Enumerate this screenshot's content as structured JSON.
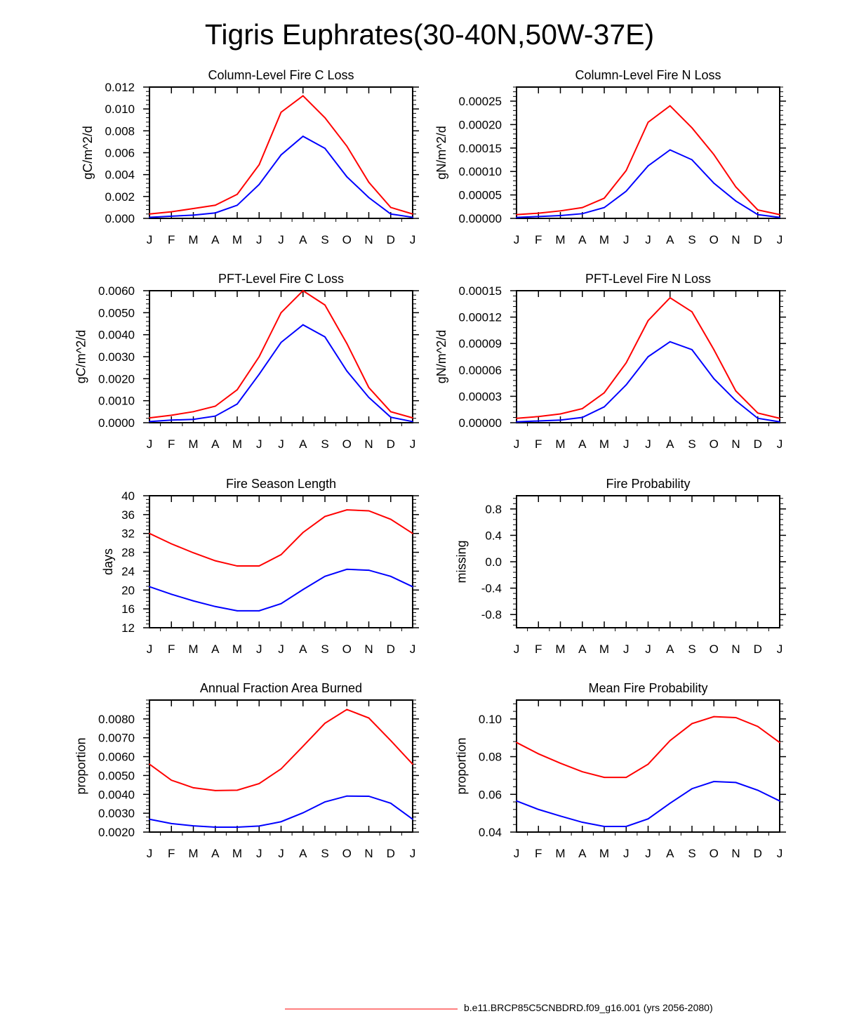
{
  "page": {
    "title": "Tigris Euphrates(30-40N,50W-37E)",
    "legend_label": "b.e11.BRCP85C5CNBDRD.f09_g16.001 (yrs 2056-2080)",
    "series_colors": [
      "#ff0000",
      "#0000ff"
    ]
  },
  "chart_data": [
    {
      "type": "line",
      "title": "Column-Level Fire C Loss",
      "ylabel": "gC/m^2/d",
      "categories": [
        "J",
        "F",
        "M",
        "A",
        "M",
        "J",
        "J",
        "A",
        "S",
        "O",
        "N",
        "D",
        "J"
      ],
      "ylim": [
        0,
        0.012
      ],
      "yticks": [
        0,
        0.002,
        0.004,
        0.006,
        0.008,
        0.01,
        0.012
      ],
      "ytick_labels": [
        "0.000",
        "0.002",
        "0.004",
        "0.006",
        "0.008",
        "0.010",
        "0.012"
      ],
      "series": [
        {
          "name": "red",
          "color": "#ff0000",
          "values": [
            0.0004,
            0.0006,
            0.0009,
            0.0012,
            0.0022,
            0.0049,
            0.0097,
            0.0112,
            0.0092,
            0.0066,
            0.0033,
            0.001,
            0.0004
          ]
        },
        {
          "name": "blue",
          "color": "#0000ff",
          "values": [
            0.0001,
            0.0002,
            0.0003,
            0.0005,
            0.0012,
            0.0031,
            0.0058,
            0.0075,
            0.0064,
            0.0038,
            0.0019,
            0.0004,
            0.0001
          ]
        }
      ]
    },
    {
      "type": "line",
      "title": "Column-Level Fire N Loss",
      "ylabel": "gN/m^2/d",
      "categories": [
        "J",
        "F",
        "M",
        "A",
        "M",
        "J",
        "J",
        "A",
        "S",
        "O",
        "N",
        "D",
        "J"
      ],
      "ylim": [
        0,
        0.00028
      ],
      "yticks": [
        0,
        5e-05,
        0.0001,
        0.00015,
        0.0002,
        0.00025
      ],
      "ytick_labels": [
        "0.00000",
        "0.00005",
        "0.00010",
        "0.00015",
        "0.00020",
        "0.00025"
      ],
      "series": [
        {
          "name": "red",
          "color": "#ff0000",
          "values": [
            8e-06,
            1.1e-05,
            1.6e-05,
            2.3e-05,
            4.3e-05,
            0.000102,
            0.000205,
            0.00024,
            0.000193,
            0.000136,
            6.7e-05,
            1.8e-05,
            8e-06
          ]
        },
        {
          "name": "blue",
          "color": "#0000ff",
          "values": [
            2e-06,
            4e-06,
            6e-06,
            1e-05,
            2.3e-05,
            5.8e-05,
            0.000112,
            0.000146,
            0.000125,
            7.5e-05,
            3.7e-05,
            8e-06,
            2e-06
          ]
        }
      ]
    },
    {
      "type": "line",
      "title": "PFT-Level Fire C Loss",
      "ylabel": "gC/m^2/d",
      "categories": [
        "J",
        "F",
        "M",
        "A",
        "M",
        "J",
        "J",
        "A",
        "S",
        "O",
        "N",
        "D",
        "J"
      ],
      "ylim": [
        0,
        0.006
      ],
      "yticks": [
        0,
        0.001,
        0.002,
        0.003,
        0.004,
        0.005,
        0.006
      ],
      "ytick_labels": [
        "0.0000",
        "0.0010",
        "0.0020",
        "0.0030",
        "0.0040",
        "0.0050",
        "0.0060"
      ],
      "series": [
        {
          "name": "red",
          "color": "#ff0000",
          "values": [
            0.00022,
            0.00034,
            0.0005,
            0.00075,
            0.0015,
            0.003,
            0.005,
            0.006,
            0.00535,
            0.0036,
            0.0016,
            0.0005,
            0.00022
          ]
        },
        {
          "name": "blue",
          "color": "#0000ff",
          "values": [
            5e-05,
            0.00012,
            0.00015,
            0.0003,
            0.00085,
            0.0022,
            0.00365,
            0.00445,
            0.0039,
            0.00235,
            0.00115,
            0.00025,
            5e-05
          ]
        }
      ]
    },
    {
      "type": "line",
      "title": "PFT-Level Fire N Loss",
      "ylabel": "gN/m^2/d",
      "categories": [
        "J",
        "F",
        "M",
        "A",
        "M",
        "J",
        "J",
        "A",
        "S",
        "O",
        "N",
        "D",
        "J"
      ],
      "ylim": [
        0,
        0.00015
      ],
      "yticks": [
        0,
        3e-05,
        6e-05,
        9e-05,
        0.00012,
        0.00015
      ],
      "ytick_labels": [
        "0.00000",
        "0.00003",
        "0.00006",
        "0.00009",
        "0.00012",
        "0.00015"
      ],
      "series": [
        {
          "name": "red",
          "color": "#ff0000",
          "values": [
            5e-06,
            7e-06,
            1e-05,
            1.6e-05,
            3.4e-05,
            6.8e-05,
            0.000116,
            0.000142,
            0.000126,
            8.3e-05,
            3.6e-05,
            1.1e-05,
            5e-06
          ]
        },
        {
          "name": "blue",
          "color": "#0000ff",
          "values": [
            1e-06,
            2e-06,
            3e-06,
            6e-06,
            1.8e-05,
            4.3e-05,
            7.5e-05,
            9.2e-05,
            8.3e-05,
            5e-05,
            2.5e-05,
            5e-06,
            1e-06
          ]
        }
      ]
    },
    {
      "type": "line",
      "title": "Fire Season Length",
      "ylabel": "days",
      "categories": [
        "J",
        "F",
        "M",
        "A",
        "M",
        "J",
        "J",
        "A",
        "S",
        "O",
        "N",
        "D",
        "J"
      ],
      "ylim": [
        12,
        40
      ],
      "yticks": [
        12,
        16,
        20,
        24,
        28,
        32,
        36,
        40
      ],
      "ytick_labels": [
        "12",
        "16",
        "20",
        "24",
        "28",
        "32",
        "36",
        "40"
      ],
      "series": [
        {
          "name": "red",
          "color": "#ff0000",
          "values": [
            32.0,
            29.8,
            27.9,
            26.2,
            25.1,
            25.1,
            27.5,
            32.2,
            35.6,
            37.0,
            36.8,
            35.0,
            32.0
          ]
        },
        {
          "name": "blue",
          "color": "#0000ff",
          "values": [
            20.7,
            19.1,
            17.7,
            16.5,
            15.6,
            15.6,
            17.1,
            20.1,
            22.9,
            24.4,
            24.2,
            22.9,
            20.7
          ]
        }
      ]
    },
    {
      "type": "line",
      "title": "Fire Probability",
      "ylabel": "missing",
      "categories": [
        "J",
        "F",
        "M",
        "A",
        "M",
        "J",
        "J",
        "A",
        "S",
        "O",
        "N",
        "D",
        "J"
      ],
      "ylim": [
        -1.0,
        1.0
      ],
      "yticks": [
        -0.8,
        -0.4,
        0.0,
        0.4,
        0.8
      ],
      "ytick_labels": [
        "-0.8",
        "-0.4",
        "0.0",
        "0.4",
        "0.8"
      ],
      "series": []
    },
    {
      "type": "line",
      "title": "Annual Fraction Area Burned",
      "ylabel": "proportion",
      "categories": [
        "J",
        "F",
        "M",
        "A",
        "M",
        "J",
        "J",
        "A",
        "S",
        "O",
        "N",
        "D",
        "J"
      ],
      "ylim": [
        0.002,
        0.009
      ],
      "yticks": [
        0.002,
        0.003,
        0.004,
        0.005,
        0.006,
        0.007,
        0.008
      ],
      "ytick_labels": [
        "0.0020",
        "0.0030",
        "0.0040",
        "0.0050",
        "0.0060",
        "0.0070",
        "0.0080"
      ],
      "series": [
        {
          "name": "red",
          "color": "#ff0000",
          "values": [
            0.0056,
            0.00475,
            0.00435,
            0.0042,
            0.00422,
            0.00457,
            0.00535,
            0.00655,
            0.00777,
            0.0085,
            0.00805,
            0.00685,
            0.0056
          ]
        },
        {
          "name": "blue",
          "color": "#0000ff",
          "values": [
            0.00268,
            0.00245,
            0.00233,
            0.00226,
            0.00226,
            0.00232,
            0.00255,
            0.00302,
            0.0036,
            0.00391,
            0.0039,
            0.00353,
            0.00268
          ]
        }
      ]
    },
    {
      "type": "line",
      "title": "Mean Fire Probability",
      "ylabel": "proportion",
      "categories": [
        "J",
        "F",
        "M",
        "A",
        "M",
        "J",
        "J",
        "A",
        "S",
        "O",
        "N",
        "D",
        "J"
      ],
      "ylim": [
        0.04,
        0.11
      ],
      "yticks": [
        0.04,
        0.06,
        0.08,
        0.1
      ],
      "ytick_labels": [
        "0.04",
        "0.06",
        "0.08",
        "0.10"
      ],
      "series": [
        {
          "name": "red",
          "color": "#ff0000",
          "values": [
            0.0875,
            0.0815,
            0.0765,
            0.072,
            0.069,
            0.069,
            0.076,
            0.0885,
            0.0975,
            0.1012,
            0.1007,
            0.096,
            0.0875
          ]
        },
        {
          "name": "blue",
          "color": "#0000ff",
          "values": [
            0.0565,
            0.052,
            0.0485,
            0.0452,
            0.043,
            0.043,
            0.047,
            0.0553,
            0.063,
            0.0668,
            0.0663,
            0.0622,
            0.0565
          ]
        }
      ]
    }
  ]
}
